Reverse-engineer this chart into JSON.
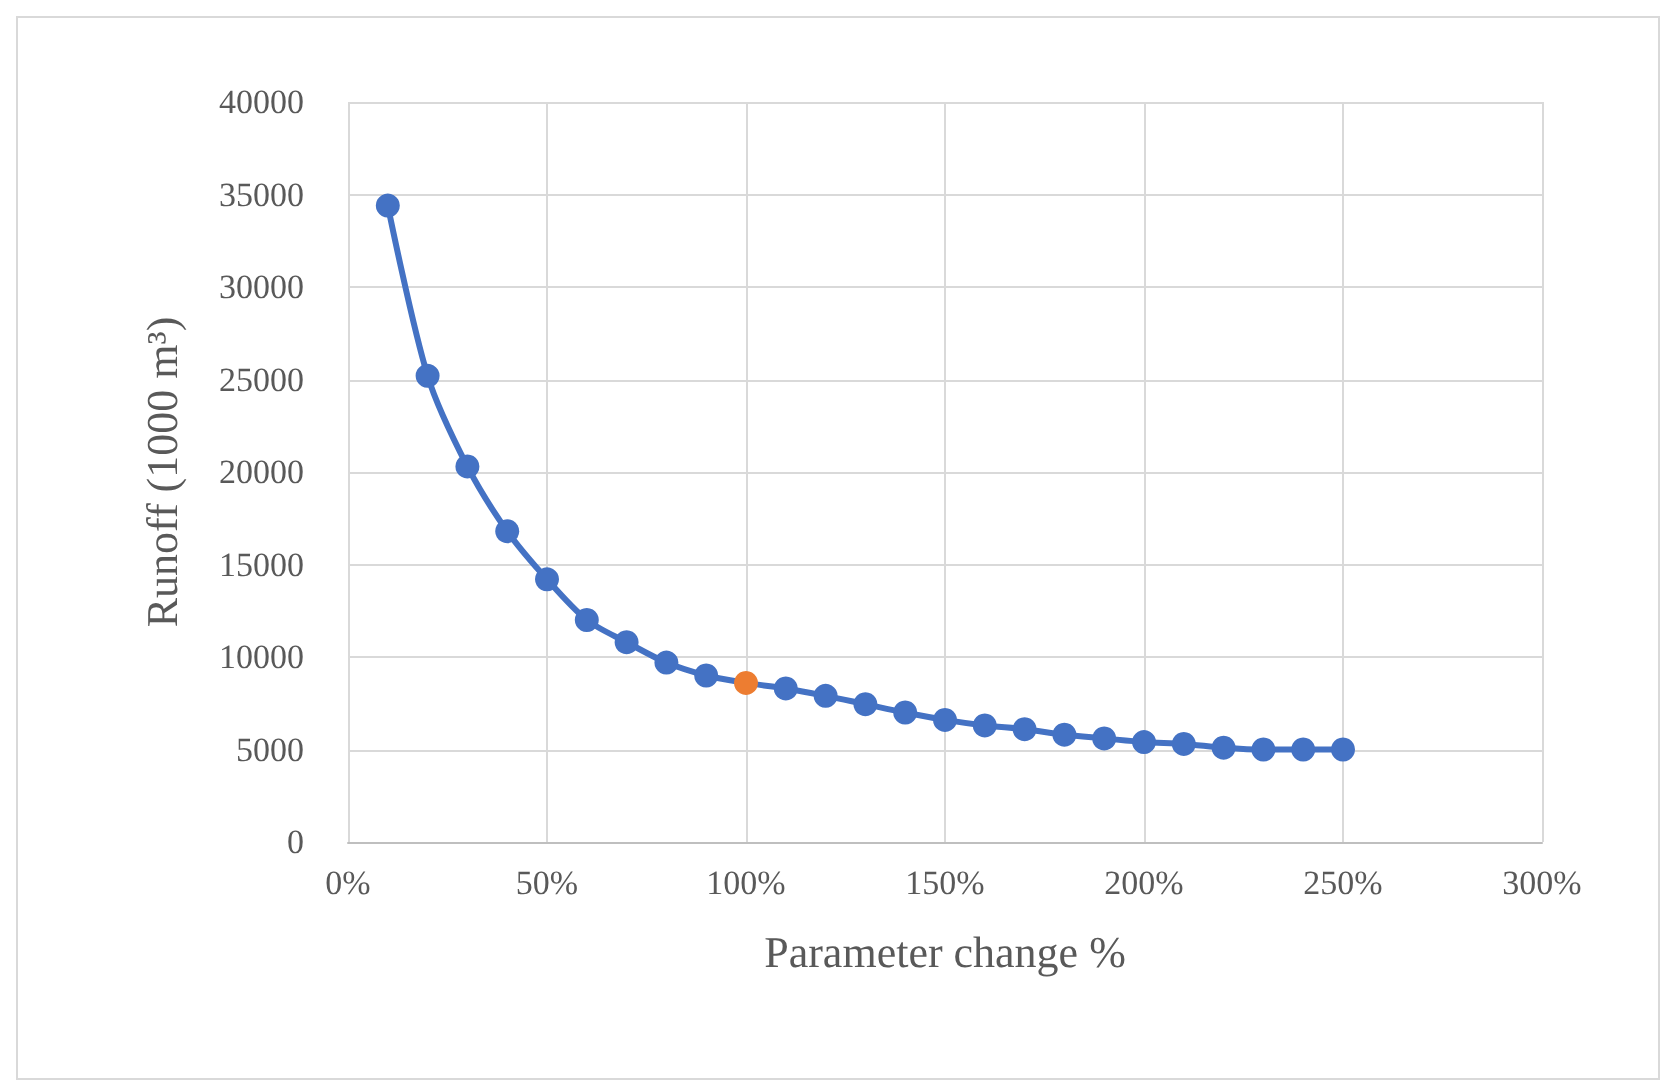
{
  "chart_data": {
    "type": "line",
    "xlabel": "Parameter change %",
    "ylabel": "Runoff (1000 m³)",
    "x": [
      10,
      20,
      30,
      40,
      50,
      60,
      70,
      80,
      90,
      100,
      110,
      120,
      130,
      140,
      150,
      160,
      170,
      180,
      190,
      200,
      210,
      220,
      230,
      240,
      250
    ],
    "series": [
      {
        "color": "#4472c4",
        "values": [
          34400,
          25200,
          20300,
          16800,
          14200,
          12000,
          10800,
          9700,
          9000,
          8600,
          8300,
          7900,
          7450,
          7000,
          6600,
          6300,
          6100,
          5800,
          5600,
          5400,
          5300,
          5100,
          5000,
          5000,
          5000
        ],
        "colors": [
          null,
          null,
          null,
          null,
          null,
          null,
          null,
          null,
          null,
          "#ed7d31",
          null,
          null,
          null,
          null,
          null,
          null,
          null,
          null,
          null,
          null,
          null,
          null,
          null,
          null,
          null
        ]
      }
    ],
    "xlim": [
      0,
      300
    ],
    "xticks": [
      {
        "value": 0,
        "label": "0%"
      },
      {
        "value": 50,
        "label": "50%"
      },
      {
        "value": 100,
        "label": "100%"
      },
      {
        "value": 150,
        "label": "150%"
      },
      {
        "value": 200,
        "label": "200%"
      },
      {
        "value": 250,
        "label": "250%"
      },
      {
        "value": 300,
        "label": "300%"
      }
    ],
    "ylim": [
      0,
      40000
    ],
    "yticks": [
      0,
      5000,
      10000,
      15000,
      20000,
      25000,
      30000,
      35000,
      40000
    ],
    "grid": true,
    "marker": "circle",
    "line_style": "solid"
  }
}
